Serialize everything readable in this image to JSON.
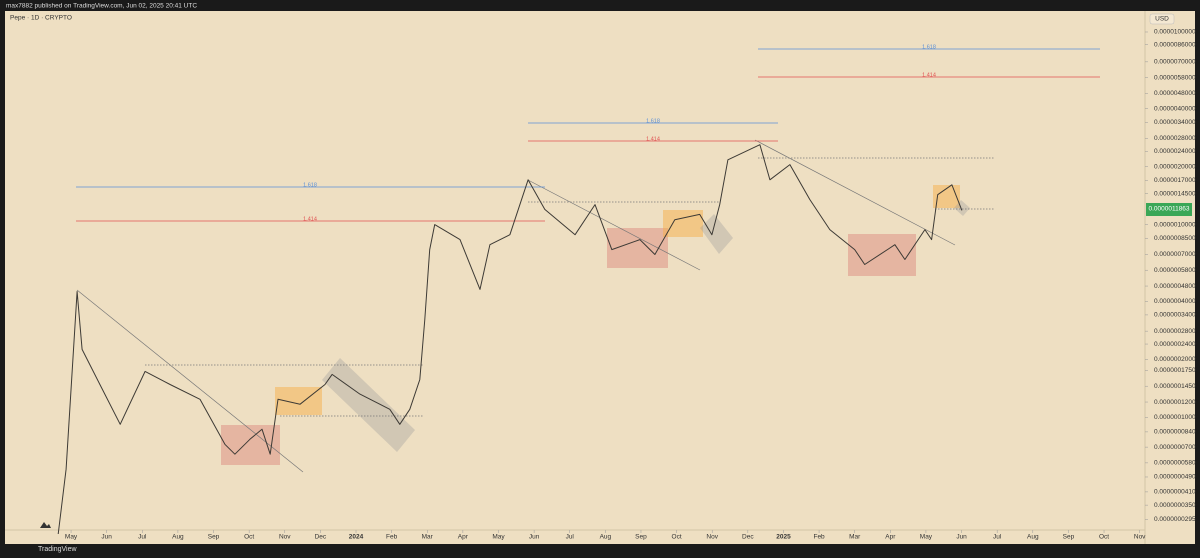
{
  "header": "max7882 published on TradingView.com, Jun 02, 2025 20:41 UTC",
  "footer": "TradingView",
  "chart_data": {
    "type": "line",
    "currency": "USD",
    "last_price_label": "0.0000011863",
    "yscale": "log",
    "grid": false,
    "background": "#eedfc2",
    "xlim": [
      -1.77,
      30.15
    ],
    "ylim": [
      2.6e-08,
      1.27e-05
    ],
    "xticks": [
      {
        "value": 0,
        "label": "May"
      },
      {
        "value": 1,
        "label": "Jun"
      },
      {
        "value": 2,
        "label": "Jul"
      },
      {
        "value": 3,
        "label": "Aug"
      },
      {
        "value": 4,
        "label": "Sep"
      },
      {
        "value": 5,
        "label": "Oct"
      },
      {
        "value": 6,
        "label": "Nov"
      },
      {
        "value": 7,
        "label": "Dec"
      },
      {
        "value": 8,
        "label": "2024"
      },
      {
        "value": 9,
        "label": "Feb"
      },
      {
        "value": 10,
        "label": "Mar"
      },
      {
        "value": 11,
        "label": "Apr"
      },
      {
        "value": 12,
        "label": "May"
      },
      {
        "value": 13,
        "label": "Jun"
      },
      {
        "value": 14,
        "label": "Jul"
      },
      {
        "value": 15,
        "label": "Aug"
      },
      {
        "value": 16,
        "label": "Sep"
      },
      {
        "value": 17,
        "label": "Oct"
      },
      {
        "value": 18,
        "label": "Nov"
      },
      {
        "value": 19,
        "label": "Dec"
      },
      {
        "value": 20,
        "label": "2025"
      },
      {
        "value": 21,
        "label": "Feb"
      },
      {
        "value": 22,
        "label": "Mar"
      },
      {
        "value": 23,
        "label": "Apr"
      },
      {
        "value": 24,
        "label": "May"
      },
      {
        "value": 25,
        "label": "Jun"
      },
      {
        "value": 26,
        "label": "Jul"
      },
      {
        "value": 27,
        "label": "Aug"
      },
      {
        "value": 28,
        "label": "Sep"
      },
      {
        "value": 29,
        "label": "Oct"
      },
      {
        "value": 30,
        "label": "Nov"
      }
    ],
    "yticks": [
      {
        "value": 1e-05,
        "label": "0.0000100000"
      },
      {
        "value": 8.6e-06,
        "label": "0.0000086000"
      },
      {
        "value": 7e-06,
        "label": "0.0000070000"
      },
      {
        "value": 5.8e-06,
        "label": "0.0000058000"
      },
      {
        "value": 4.8e-06,
        "label": "0.0000048000"
      },
      {
        "value": 4e-06,
        "label": "0.0000040000"
      },
      {
        "value": 3.4e-06,
        "label": "0.0000034000"
      },
      {
        "value": 2.8e-06,
        "label": "0.0000028000"
      },
      {
        "value": 2.4e-06,
        "label": "0.0000024000"
      },
      {
        "value": 2e-06,
        "label": "0.0000020000"
      },
      {
        "value": 1.7e-06,
        "label": "0.0000017000"
      },
      {
        "value": 1.45e-06,
        "label": "0.0000014500"
      },
      {
        "value": 1e-06,
        "label": "0.0000010000"
      },
      {
        "value": 8.5e-07,
        "label": "0.0000008500"
      },
      {
        "value": 7e-07,
        "label": "0.0000007000"
      },
      {
        "value": 5.8e-07,
        "label": "0.0000005800"
      },
      {
        "value": 4.8e-07,
        "label": "0.0000004800"
      },
      {
        "value": 4e-07,
        "label": "0.0000004000"
      },
      {
        "value": 3.4e-07,
        "label": "0.0000003400"
      },
      {
        "value": 2.8e-07,
        "label": "0.0000002800"
      },
      {
        "value": 2.4e-07,
        "label": "0.0000002400"
      },
      {
        "value": 2e-07,
        "label": "0.0000002000"
      },
      {
        "value": 1.75e-07,
        "label": "0.0000001750"
      },
      {
        "value": 1.45e-07,
        "label": "0.0000001450"
      },
      {
        "value": 1.2e-07,
        "label": "0.0000001200"
      },
      {
        "value": 1e-07,
        "label": "0.0000001000"
      },
      {
        "value": 8.4e-08,
        "label": "0.0000000840"
      },
      {
        "value": 7e-08,
        "label": "0.0000000700"
      },
      {
        "value": 5.8e-08,
        "label": "0.0000000580"
      },
      {
        "value": 4.9e-08,
        "label": "0.0000000490"
      },
      {
        "value": 4.1e-08,
        "label": "0.0000000410"
      },
      {
        "value": 3.5e-08,
        "label": "0.0000000350"
      },
      {
        "value": 2.95e-08,
        "label": "0.0000000295"
      }
    ],
    "annotations": [
      "1.618",
      "1.414",
      "1.618",
      "1.414",
      "1.618",
      "1.414"
    ],
    "series": [
      {
        "name": "Pepe · 1D · CRYPTO",
        "color": "#3d3a35",
        "x": [
          -0.36,
          -0.14,
          0.17,
          0.31,
          0.81,
          1.38,
          2.08,
          2.78,
          3.62,
          4.32,
          4.6,
          5.02,
          5.36,
          5.59,
          5.81,
          6.43,
          7.13,
          7.33,
          8.11,
          8.95,
          9.23,
          9.51,
          9.79,
          9.93,
          10.07,
          10.21,
          10.92,
          11.48,
          11.76,
          12.32,
          12.83,
          13.3,
          14.15,
          14.71,
          15.18,
          15.97,
          16.39,
          16.95,
          17.65,
          17.99,
          18.21,
          18.44,
          19.34,
          19.62,
          20.18,
          20.74,
          21.3,
          22.0,
          22.28,
          23.13,
          23.41,
          23.97,
          24.16,
          24.33,
          24.73,
          25.01
        ],
        "values": [
          2.48e-08,
          5.38e-08,
          4.5e-07,
          2.25e-07,
          1.48e-07,
          9.2e-08,
          1.73e-07,
          1.48e-07,
          1.24e-07,
          7.24e-08,
          6.43e-08,
          7.69e-08,
          8.67e-08,
          6.43e-08,
          1.24e-07,
          1.17e-07,
          1.48e-07,
          1.67e-07,
          1.32e-07,
          1.1e-07,
          9.2e-08,
          1.1e-07,
          1.57e-07,
          3.22e-07,
          7.42e-07,
          1e-06,
          8.36e-07,
          4.61e-07,
          7.87e-07,
          8.87e-07,
          1.71e-06,
          1.2e-06,
          8.87e-07,
          1.27e-06,
          7.42e-07,
          8.36e-07,
          7e-07,
          1.06e-06,
          1.13e-06,
          8.87e-07,
          1.27e-06,
          2.17e-06,
          2.6e-06,
          1.71e-06,
          2.05e-06,
          1.35e-06,
          9.42e-07,
          7.42e-07,
          6.21e-07,
          7.87e-07,
          6.59e-07,
          9.42e-07,
          8.36e-07,
          1.43e-06,
          1.61e-06,
          1.1863e-06
        ]
      }
    ]
  }
}
